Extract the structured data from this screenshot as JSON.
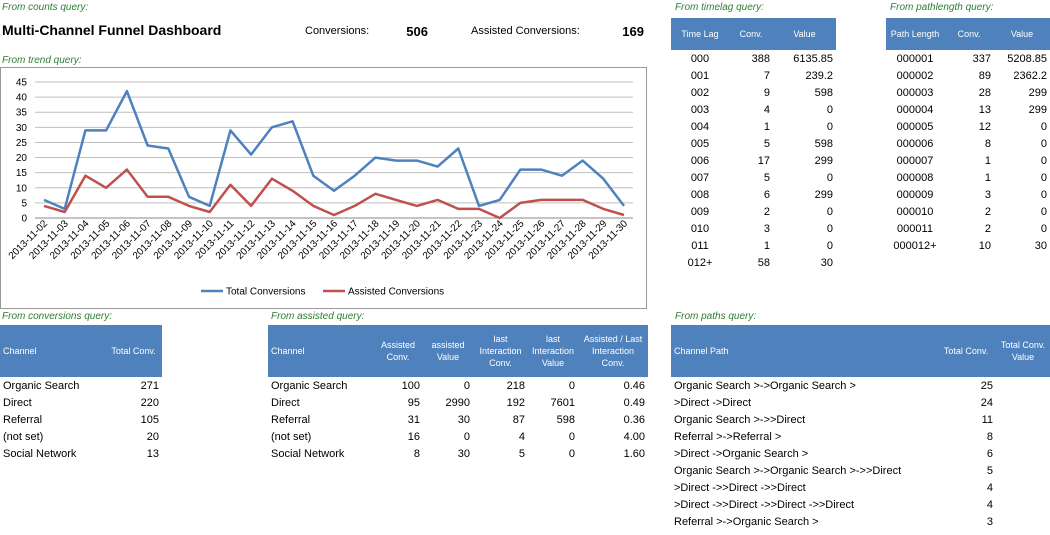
{
  "labels": {
    "counts": "From counts query:",
    "trend": "From trend query:",
    "timelag": "From timelag query:",
    "pathlength": "From pathlength query:",
    "conversions": "From conversions query:",
    "assisted": "From assisted query:",
    "paths": "From paths query:"
  },
  "header": {
    "title": "Multi-Channel Funnel Dashboard",
    "conversions_label": "Conversions:",
    "conversions_value": "506",
    "assisted_label": "Assisted Conversions:",
    "assisted_value": "169"
  },
  "colors": {
    "total": "#4f81bd",
    "assisted": "#c0504d",
    "header_bg": "#4f81bd",
    "label": "#2e7d32"
  },
  "chart_data": {
    "type": "line",
    "categories": [
      "2013-11-02",
      "2013-11-03",
      "2013-11-04",
      "2013-11-05",
      "2013-11-06",
      "2013-11-07",
      "2013-11-08",
      "2013-11-09",
      "2013-11-10",
      "2013-11-11",
      "2013-11-12",
      "2013-11-13",
      "2013-11-14",
      "2013-11-15",
      "2013-11-16",
      "2013-11-17",
      "2013-11-18",
      "2013-11-19",
      "2013-11-20",
      "2013-11-21",
      "2013-11-22",
      "2013-11-23",
      "2013-11-24",
      "2013-11-25",
      "2013-11-26",
      "2013-11-27",
      "2013-11-28",
      "2013-11-29",
      "2013-11-30"
    ],
    "series": [
      {
        "name": "Total Conversions",
        "values": [
          6,
          3,
          29,
          29,
          42,
          24,
          23,
          7,
          4,
          29,
          21,
          30,
          32,
          14,
          9,
          14,
          20,
          19,
          19,
          17,
          23,
          4,
          6,
          16,
          16,
          14,
          19,
          13,
          4
        ]
      },
      {
        "name": "Assisted Conversions",
        "values": [
          4,
          2,
          14,
          10,
          16,
          7,
          7,
          4,
          2,
          11,
          4,
          13,
          9,
          4,
          1,
          4,
          8,
          6,
          4,
          6,
          3,
          3,
          0,
          5,
          6,
          6,
          6,
          3,
          1
        ]
      }
    ],
    "yticks": [
      "0",
      "5",
      "10",
      "15",
      "20",
      "25",
      "30",
      "35",
      "40",
      "45"
    ],
    "ylim": [
      0,
      45
    ],
    "grid": true,
    "legend": "bottom"
  },
  "timelag": {
    "headers": [
      "Time Lag",
      "Conv.",
      "Value"
    ],
    "rows": [
      [
        "000",
        "388",
        "6135.85"
      ],
      [
        "001",
        "7",
        "239.2"
      ],
      [
        "002",
        "9",
        "598"
      ],
      [
        "003",
        "4",
        "0"
      ],
      [
        "004",
        "1",
        "0"
      ],
      [
        "005",
        "5",
        "598"
      ],
      [
        "006",
        "17",
        "299"
      ],
      [
        "007",
        "5",
        "0"
      ],
      [
        "008",
        "6",
        "299"
      ],
      [
        "009",
        "2",
        "0"
      ],
      [
        "010",
        "3",
        "0"
      ],
      [
        "011",
        "1",
        "0"
      ],
      [
        "012+",
        "58",
        "30"
      ]
    ]
  },
  "pathlength": {
    "headers": [
      "Path Length",
      "Conv.",
      "Value"
    ],
    "rows": [
      [
        "000001",
        "337",
        "5208.85"
      ],
      [
        "000002",
        "89",
        "2362.2"
      ],
      [
        "000003",
        "28",
        "299"
      ],
      [
        "000004",
        "13",
        "299"
      ],
      [
        "000005",
        "12",
        "0"
      ],
      [
        "000006",
        "8",
        "0"
      ],
      [
        "000007",
        "1",
        "0"
      ],
      [
        "000008",
        "1",
        "0"
      ],
      [
        "000009",
        "3",
        "0"
      ],
      [
        "000010",
        "2",
        "0"
      ],
      [
        "000011",
        "2",
        "0"
      ],
      [
        "000012+",
        "10",
        "30"
      ]
    ]
  },
  "conversions": {
    "headers": [
      "Channel",
      "Total Conv."
    ],
    "rows": [
      [
        "Organic Search",
        "271"
      ],
      [
        "Direct",
        "220"
      ],
      [
        "Referral",
        "105"
      ],
      [
        "(not set)",
        "20"
      ],
      [
        "Social Network",
        "13"
      ]
    ]
  },
  "assisted": {
    "headers": [
      "Channel",
      "Assisted Conv.",
      "assisted Value",
      "last Interaction Conv.",
      "last Interaction Value",
      "Assisted / Last Interaction Conv."
    ],
    "rows": [
      [
        "Organic Search",
        "100",
        "0",
        "218",
        "0",
        "0.46"
      ],
      [
        "Direct",
        "95",
        "2990",
        "192",
        "7601",
        "0.49"
      ],
      [
        "Referral",
        "31",
        "30",
        "87",
        "598",
        "0.36"
      ],
      [
        "(not set)",
        "16",
        "0",
        "4",
        "0",
        "4.00"
      ],
      [
        "Social Network",
        "8",
        "30",
        "5",
        "0",
        "1.60"
      ]
    ]
  },
  "paths": {
    "headers": [
      "Channel Path",
      "Total Conv.",
      "Total Conv. Value"
    ],
    "rows": [
      [
        "Organic Search >->Organic Search >",
        "25",
        ""
      ],
      [
        ">Direct ->Direct",
        "24",
        ""
      ],
      [
        "Organic Search >->>Direct",
        "11",
        ""
      ],
      [
        "Referral >->Referral >",
        "8",
        ""
      ],
      [
        ">Direct ->Organic Search >",
        "6",
        ""
      ],
      [
        "Organic Search >->Organic Search >->>Direct",
        "5",
        ""
      ],
      [
        ">Direct ->>Direct ->>Direct",
        "4",
        ""
      ],
      [
        ">Direct ->>Direct ->>Direct ->>Direct",
        "4",
        ""
      ],
      [
        "Referral >->Organic Search >",
        "3",
        ""
      ]
    ]
  }
}
